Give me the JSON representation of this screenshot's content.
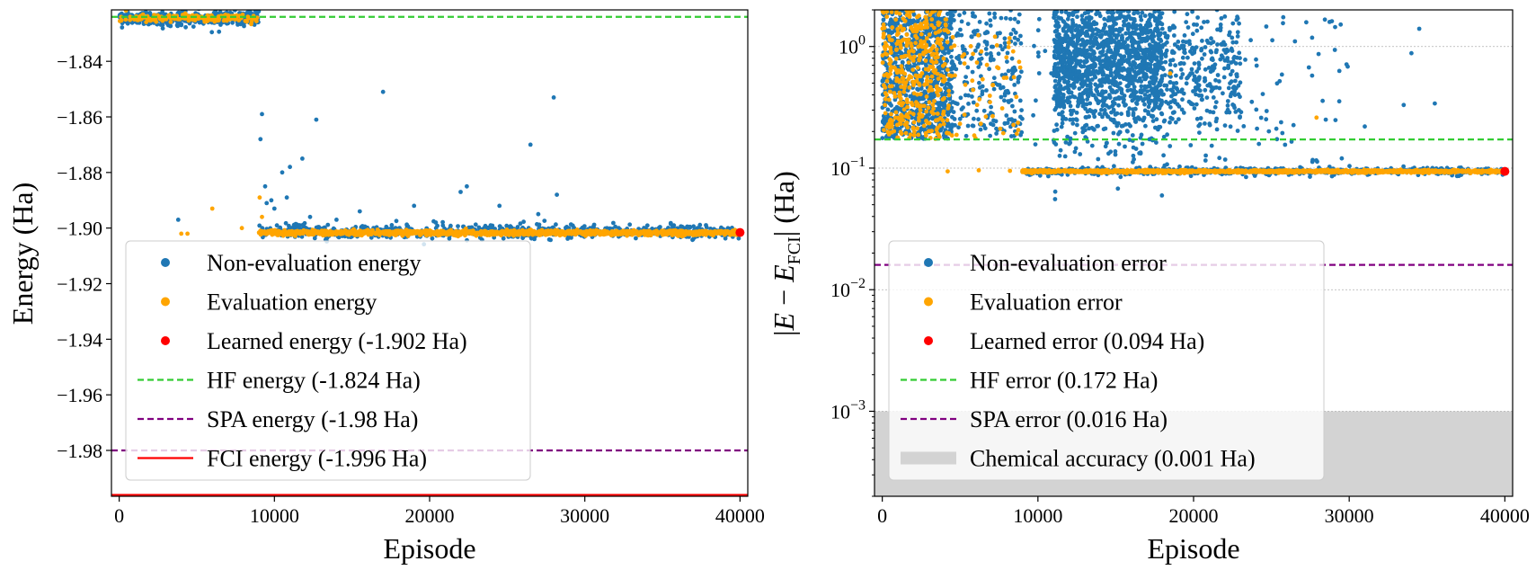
{
  "chart_data": [
    {
      "type": "scatter",
      "xlabel": "Episode",
      "ylabel": "Energy (Ha)",
      "xlim": [
        -500,
        40500
      ],
      "ylim": [
        -1.9965,
        -1.8215
      ],
      "yscale": "linear",
      "xticks": [
        0,
        10000,
        20000,
        30000,
        40000
      ],
      "xtick_labels": [
        "0",
        "10000",
        "20000",
        "30000",
        "40000"
      ],
      "yticks": [
        -1.84,
        -1.86,
        -1.88,
        -1.9,
        -1.92,
        -1.94,
        -1.96,
        -1.98
      ],
      "ytick_labels": [
        "−1.84",
        "−1.86",
        "−1.88",
        "−1.90",
        "−1.92",
        "−1.94",
        "−1.96",
        "−1.98"
      ],
      "grid": false,
      "legend_position": "lower-left",
      "series": [
        {
          "name": "Non-evaluation energy",
          "kind": "scatter",
          "color": "#1f77b4",
          "outlier_points": [
            [
              17000,
              -1.851
            ],
            [
              28000,
              -1.853
            ],
            [
              12700,
              -1.861
            ],
            [
              9200,
              -1.859
            ],
            [
              26500,
              -1.87
            ],
            [
              9100,
              -1.868
            ],
            [
              11000,
              -1.878
            ],
            [
              10500,
              -1.88
            ],
            [
              11800,
              -1.875
            ],
            [
              9400,
              -1.885
            ],
            [
              22400,
              -1.885
            ],
            [
              28200,
              -1.888
            ],
            [
              22000,
              -1.887
            ],
            [
              9800,
              -1.89
            ],
            [
              3800,
              -1.897
            ],
            [
              14000,
              -1.897
            ],
            [
              19000,
              -1.892
            ],
            [
              20400,
              -1.898
            ],
            [
              24500,
              -1.892
            ],
            [
              27000,
              -1.895
            ],
            [
              10000,
              -1.893
            ],
            [
              15500,
              -1.894
            ],
            [
              12300,
              -1.896
            ],
            [
              9500,
              -1.891
            ],
            [
              10800,
              -1.889
            ]
          ],
          "bands": [
            {
              "x_range": [
                0,
                9000
              ],
              "y_center": -1.8245,
              "y_spread": 0.0012,
              "count": 420
            },
            {
              "x_range": 0,
              "y_center": -1.8235,
              "y_spread": 0.0008,
              "count": 0
            },
            {
              "x_range": [
                9000,
                40000
              ],
              "y_center": -1.9012,
              "y_spread": 0.0012,
              "count": 700
            }
          ]
        },
        {
          "name": "Evaluation energy",
          "kind": "scatter",
          "color": "#ffa500",
          "outlier_points": [
            [
              6000,
              -1.893
            ],
            [
              7900,
              -1.9
            ],
            [
              4000,
              -1.902
            ],
            [
              4400,
              -1.902
            ],
            [
              9200,
              -1.896
            ],
            [
              9050,
              -1.889
            ]
          ],
          "bands": [
            {
              "x_range": [
                0,
                9000
              ],
              "y_center": -1.8245,
              "y_spread": 0.0008,
              "count": 160
            },
            {
              "x_range": [
                9000,
                40000
              ],
              "y_center": -1.9017,
              "y_spread": 0.0004,
              "count": 1500
            }
          ]
        },
        {
          "name": "Learned energy (-1.902 Ha)",
          "kind": "marker",
          "color": "#ff0000",
          "x": 40000,
          "y": -1.9016
        },
        {
          "name": "HF energy (-1.824 Ha)",
          "kind": "hline",
          "style": "dashed",
          "color": "#33cc33",
          "y": -1.824
        },
        {
          "name": "SPA energy (-1.98 Ha)",
          "kind": "hline",
          "style": "dashed",
          "color": "#800080",
          "y": -1.98
        },
        {
          "name": "FCI energy (-1.996 Ha)",
          "kind": "hline",
          "style": "solid",
          "color": "#ff0000",
          "y": -1.996
        }
      ]
    },
    {
      "type": "scatter",
      "xlabel": "Episode",
      "ylabel": "|E − E_FCI| (Ha)",
      "xlim": [
        -500,
        40500
      ],
      "ylim": [
        0.0002,
        2.0
      ],
      "yscale": "log",
      "xticks": [
        0,
        10000,
        20000,
        30000,
        40000
      ],
      "xtick_labels": [
        "0",
        "10000",
        "20000",
        "30000",
        "40000"
      ],
      "yticks": [
        1,
        0.1,
        0.01,
        0.001
      ],
      "ytick_labels": [
        "10^0",
        "10^−1",
        "10^−2",
        "10^−3"
      ],
      "grid": true,
      "legend_position": "lower-left",
      "series": [
        {
          "name": "Non-evaluation error",
          "kind": "scatter",
          "color": "#1f77b4",
          "bands": [
            {
              "x_range": [
                0,
                4500
              ],
              "y_log_range": [
                -0.76,
                0.3
              ],
              "count": 900
            },
            {
              "x_range": [
                4000,
                9000
              ],
              "y_log_range": [
                -0.76,
                0.3
              ],
              "count": 250
            },
            {
              "x_range": [
                11000,
                18000
              ],
              "y_log_center": -0.1,
              "y_log_spread": 0.32,
              "count": 1500
            },
            {
              "x_range": [
                17000,
                23000
              ],
              "y_log_center": -0.2,
              "y_log_spread": 0.25,
              "count": 350
            },
            {
              "x_range": [
                9000,
                30000
              ],
              "y_log_range": [
                -0.95,
                0.25
              ],
              "count": 150
            },
            {
              "x_range": [
                9000,
                40000
              ],
              "y_log_center": -1.025,
              "y_log_spread": 0.015,
              "count": 500
            }
          ],
          "outlier_points": [
            [
              33500,
              0.33
            ],
            [
              34000,
              0.88
            ],
            [
              35500,
              0.34
            ],
            [
              34500,
              1.4
            ],
            [
              31000,
              0.22
            ]
          ]
        },
        {
          "name": "Evaluation error",
          "kind": "scatter",
          "color": "#ffa500",
          "bands": [
            {
              "x_range": [
                0,
                4300
              ],
              "y_log_range": [
                -0.76,
                0.3
              ],
              "count": 400
            },
            {
              "x_range": [
                4000,
                9000
              ],
              "y_log_range": [
                -0.76,
                0.1
              ],
              "count": 60
            },
            {
              "x_range": [
                9000,
                40000
              ],
              "y_log_center": -1.027,
              "y_log_spread": 0.005,
              "count": 1500
            }
          ],
          "outlier_points": [
            [
              4200,
              0.094
            ],
            [
              6200,
              0.096
            ],
            [
              8200,
              0.095
            ],
            [
              27900,
              0.26
            ],
            [
              18500,
              0.6
            ]
          ]
        },
        {
          "name": "Learned error (0.094 Ha)",
          "kind": "marker",
          "color": "#ff0000",
          "x": 40000,
          "y": 0.094
        },
        {
          "name": "HF error (0.172 Ha)",
          "kind": "hline",
          "style": "dashed",
          "color": "#33cc33",
          "y": 0.172
        },
        {
          "name": "SPA error (0.016 Ha)",
          "kind": "hline",
          "style": "dashed",
          "color": "#800080",
          "y": 0.016
        },
        {
          "name": "Chemical accuracy (0.001 Ha)",
          "kind": "band",
          "color": "#d3d3d3",
          "y_range": [
            0.0002,
            0.001
          ]
        }
      ]
    }
  ]
}
